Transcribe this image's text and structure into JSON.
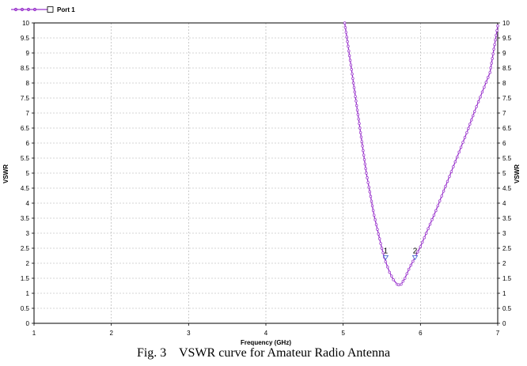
{
  "chart_data": {
    "type": "line",
    "legend": {
      "entries": [
        "Port 1"
      ],
      "placement": "top-left"
    },
    "xlabel": "Frequency (GHz)",
    "ylabel": "VSWR",
    "xlim": [
      1,
      7
    ],
    "ylim": [
      0,
      10
    ],
    "x_ticks": [
      "1",
      "2",
      "3",
      "4",
      "5",
      "6",
      "7"
    ],
    "y_ticks": [
      "0",
      "0.5",
      "1",
      "1.5",
      "2",
      "2.5",
      "3",
      "3.5",
      "4",
      "4.5",
      "5",
      "5.5",
      "6",
      "6.5",
      "7",
      "7.5",
      "8",
      "8.5",
      "9",
      "9.5",
      "10"
    ],
    "grid": true,
    "series": [
      {
        "name": "Port 1",
        "color": "#9933cc",
        "x": [
          5.02,
          5.1,
          5.2,
          5.3,
          5.4,
          5.5,
          5.55,
          5.6,
          5.65,
          5.7,
          5.72,
          5.75,
          5.8,
          5.85,
          5.93,
          6.0,
          6.1,
          6.2,
          6.3,
          6.4,
          6.5,
          6.6,
          6.7,
          6.8,
          6.9,
          7.0
        ],
        "y": [
          10.0,
          8.6,
          6.8,
          5.0,
          3.6,
          2.5,
          2.05,
          1.7,
          1.45,
          1.3,
          1.28,
          1.3,
          1.5,
          1.8,
          2.2,
          2.55,
          3.15,
          3.75,
          4.4,
          5.05,
          5.7,
          6.35,
          7.05,
          7.7,
          8.35,
          9.9
        ]
      }
    ],
    "markers": [
      {
        "label": "1",
        "x": 5.55,
        "y": 2.2
      },
      {
        "label": "2",
        "x": 5.93,
        "y": 2.2
      }
    ]
  },
  "caption": {
    "figure": "Fig. 3",
    "text": "VSWR curve for Amateur Radio Antenna"
  }
}
